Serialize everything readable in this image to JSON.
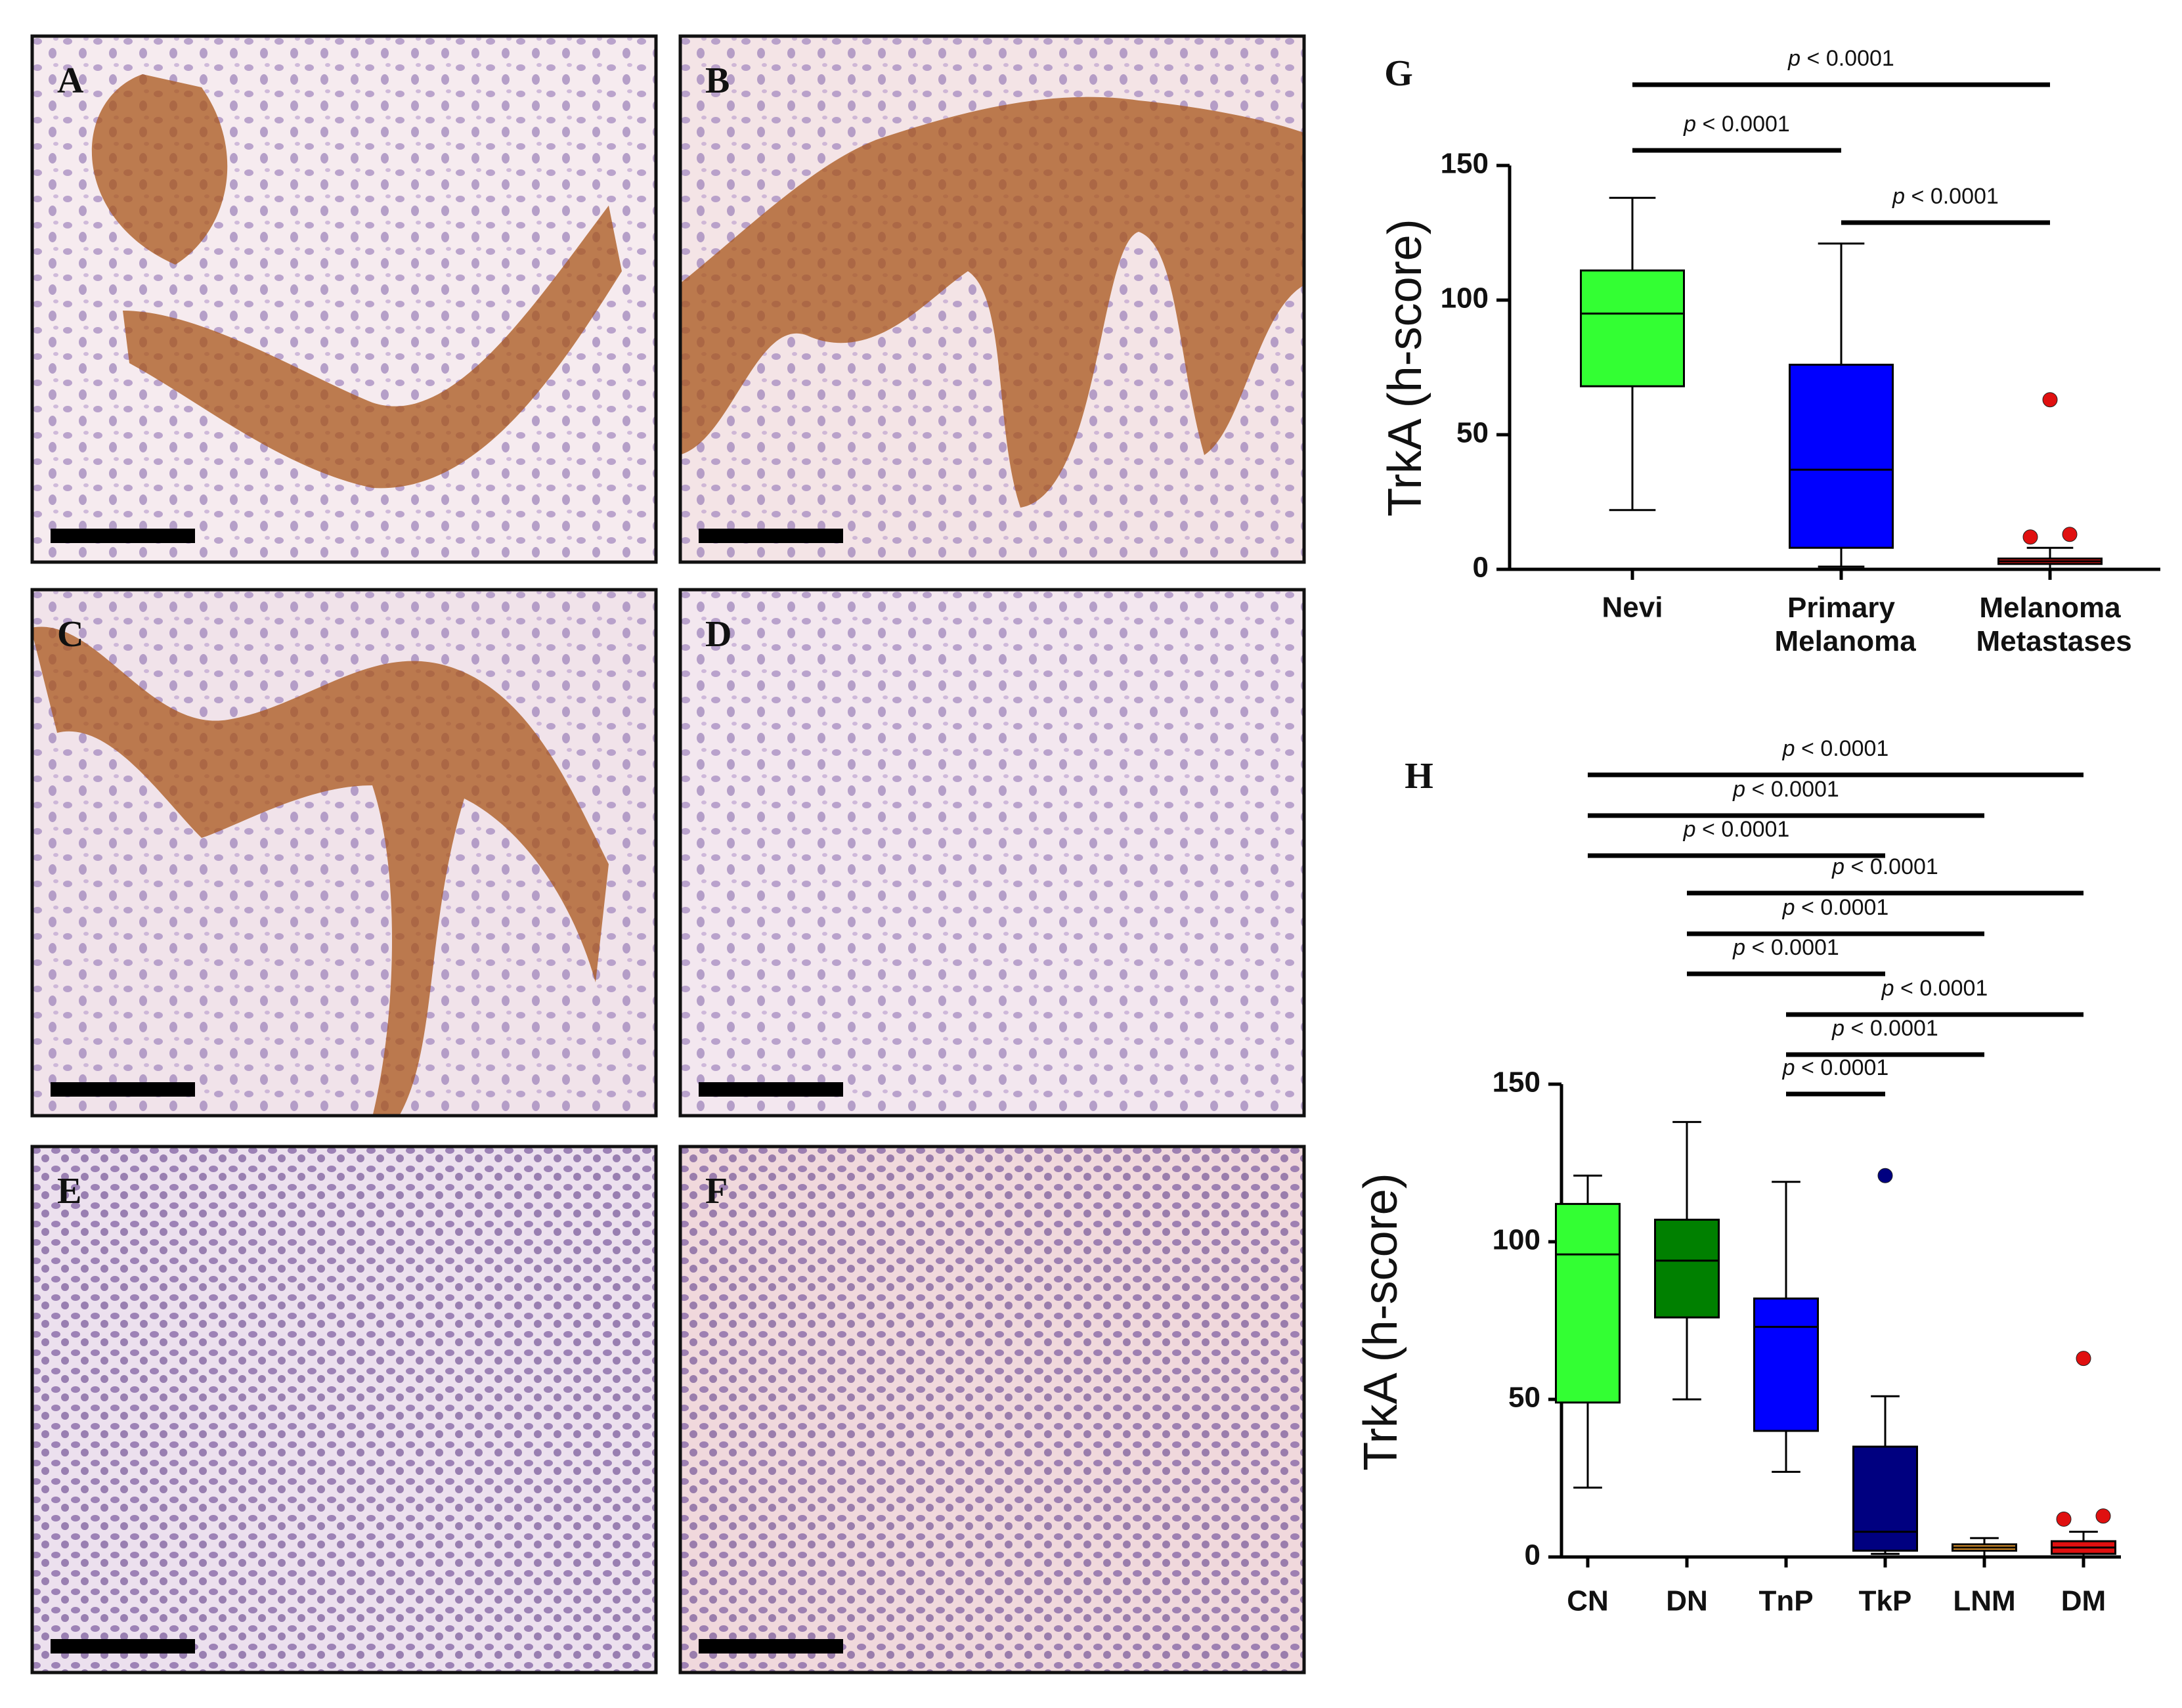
{
  "panels": [
    {
      "label": "A"
    },
    {
      "label": "B"
    },
    {
      "label": "C"
    },
    {
      "label": "D"
    },
    {
      "label": "E"
    },
    {
      "label": "F"
    }
  ],
  "chart_data": [
    {
      "type": "box",
      "title": "G",
      "ylabel": "TrkA (h-score)",
      "categories": [
        "Nevi",
        "Primary Melanoma",
        "Melanoma Metastases"
      ],
      "boxes": [
        {
          "min": 22,
          "q1": 68,
          "median": 95,
          "q3": 111,
          "max": 138,
          "outliers": [],
          "color": "#33ff33"
        },
        {
          "min": 1,
          "q1": 8,
          "median": 37,
          "q3": 76,
          "max": 121,
          "outliers": [],
          "color": "#0000ff"
        },
        {
          "min": 0,
          "q1": 2,
          "median": 3,
          "q3": 4,
          "max": 8,
          "outliers": [
            63,
            12,
            13
          ],
          "color": "#e01010"
        }
      ],
      "ylim": [
        0,
        150
      ],
      "yticks": [
        0,
        50,
        100,
        150
      ],
      "comparisons": [
        {
          "groups": [
            "Nevi",
            "Melanoma Metastases"
          ],
          "label": "p < 0.0001"
        },
        {
          "groups": [
            "Nevi",
            "Primary Melanoma"
          ],
          "label": "p < 0.0001"
        },
        {
          "groups": [
            "Primary Melanoma",
            "Melanoma Metastases"
          ],
          "label": "p < 0.0001"
        }
      ]
    },
    {
      "type": "box",
      "title": "H",
      "ylabel": "TrkA (h-score)",
      "categories": [
        "CN",
        "DN",
        "TnP",
        "TkP",
        "LNM",
        "DM"
      ],
      "boxes": [
        {
          "min": 22,
          "q1": 49,
          "median": 96,
          "q3": 112,
          "max": 121,
          "outliers": [],
          "color": "#33ff33"
        },
        {
          "min": 50,
          "q1": 76,
          "median": 94,
          "q3": 107,
          "max": 138,
          "outliers": [],
          "color": "#008000"
        },
        {
          "min": 27,
          "q1": 40,
          "median": 73,
          "q3": 82,
          "max": 119,
          "outliers": [],
          "color": "#0000ff"
        },
        {
          "min": 1,
          "q1": 2,
          "median": 8,
          "q3": 35,
          "max": 51,
          "outliers": [
            121
          ],
          "color": "#000080"
        },
        {
          "min": 0,
          "q1": 2,
          "median": 3,
          "q3": 4,
          "max": 6,
          "outliers": [],
          "color": "#f0a030"
        },
        {
          "min": 0,
          "q1": 1,
          "median": 3,
          "q3": 5,
          "max": 8,
          "outliers": [
            63,
            12,
            13
          ],
          "color": "#e01010"
        }
      ],
      "ylim": [
        0,
        150
      ],
      "yticks": [
        0,
        50,
        100,
        150
      ],
      "comparisons": [
        {
          "groups": [
            "CN",
            "DM"
          ],
          "label": "p < 0.0001"
        },
        {
          "groups": [
            "CN",
            "LNM"
          ],
          "label": "p < 0.0001"
        },
        {
          "groups": [
            "CN",
            "TkP"
          ],
          "label": "p < 0.0001"
        },
        {
          "groups": [
            "DN",
            "DM"
          ],
          "label": "p < 0.0001"
        },
        {
          "groups": [
            "DN",
            "LNM"
          ],
          "label": "p < 0.0001"
        },
        {
          "groups": [
            "DN",
            "TkP"
          ],
          "label": "p < 0.0001"
        },
        {
          "groups": [
            "TnP",
            "DM"
          ],
          "label": "p < 0.0001"
        },
        {
          "groups": [
            "TnP",
            "LNM"
          ],
          "label": "p < 0.0001"
        },
        {
          "groups": [
            "TnP",
            "TkP"
          ],
          "label": "p < 0.0001"
        }
      ]
    }
  ]
}
